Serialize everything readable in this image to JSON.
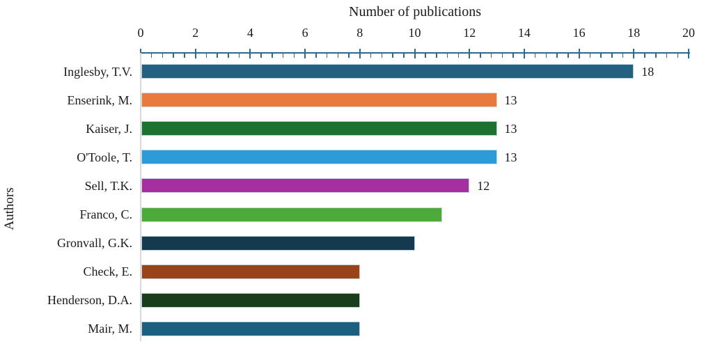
{
  "chart_data": {
    "type": "bar",
    "orientation": "horizontal",
    "title": "",
    "xlabel": "Number of publications",
    "ylabel": "Authors",
    "xlim": [
      0,
      20
    ],
    "x_major_tick_step": 2,
    "x_minor_tick_step": 0.4,
    "x_tick_labels": [
      "0",
      "2",
      "4",
      "6",
      "8",
      "10",
      "12",
      "14",
      "16",
      "18",
      "20"
    ],
    "categories": [
      "Inglesby, T.V.",
      "Enserink, M.",
      "Kaiser, J.",
      "O'Toole, T.",
      "Sell, T.K.",
      "Franco, C.",
      "Gronvall, G.K.",
      "Check, E.",
      "Henderson, D.A.",
      "Mair, M."
    ],
    "values": [
      18,
      13,
      13,
      13,
      12,
      11,
      10,
      8,
      8,
      8
    ],
    "data_labels": [
      "18",
      "13",
      "13",
      "13",
      "12",
      "",
      "",
      "",
      "",
      ""
    ],
    "bar_colors": [
      "#24607f",
      "#e87a3e",
      "#1d7230",
      "#2d9bd5",
      "#a42f9d",
      "#4caa3a",
      "#15394e",
      "#9a431b",
      "#1a3d1e",
      "#1d5f7f"
    ],
    "axis_color": "#2b6a8c",
    "gridline_color": "#d9d9d9",
    "grid": false,
    "legend": "none"
  }
}
